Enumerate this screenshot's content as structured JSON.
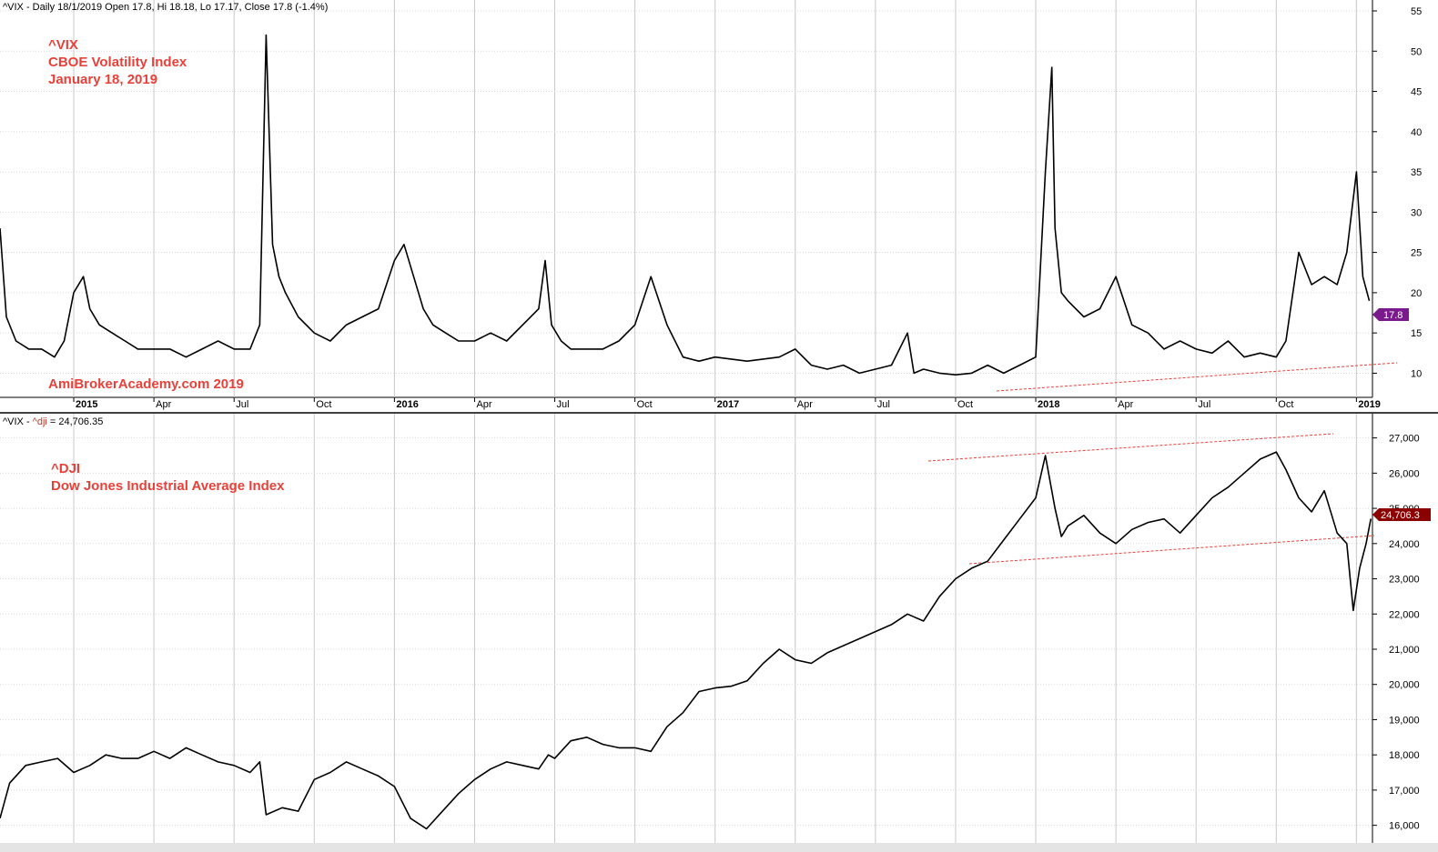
{
  "header": {
    "vix_info": "^VIX - Daily 18/1/2019 Open 17.8, Hi 18.18, Lo 17.17, Close 17.8 (-1.4%)",
    "dji_info_prefix": "^VIX - ",
    "dji_info_name": "^dji",
    "dji_info_suffix": " = 24,706.35"
  },
  "annotations": {
    "vix_lines": [
      "^VIX",
      "CBOE Volatility Index",
      "January 18, 2019"
    ],
    "watermark": "AmiBrokerAcademy.com  2019",
    "dji_lines": [
      "^DJI",
      "Dow Jones Industrial Average Index"
    ]
  },
  "colors": {
    "price_line": "#000000",
    "trendline": "#e8413a",
    "annotation": "#e8413a",
    "vix_tag": "#7a1a8c",
    "dji_tag": "#8b0000",
    "grid": "#c8c8c8"
  },
  "chart_data": [
    {
      "type": "line",
      "name": "^VIX",
      "ylim": [
        7,
        55
      ],
      "y_ticks": [
        10,
        15,
        20,
        25,
        30,
        35,
        40,
        45,
        50,
        55
      ],
      "y_tick_labels": [
        "10",
        "15",
        "20",
        "25",
        "30",
        "35",
        "40",
        "45",
        "50",
        "55"
      ],
      "x_ticks": [
        {
          "label": "2015",
          "date": 2015.0,
          "major": true
        },
        {
          "label": "Apr",
          "date": 2015.25,
          "major": false
        },
        {
          "label": "Jul",
          "date": 2015.5,
          "major": false
        },
        {
          "label": "Oct",
          "date": 2015.75,
          "major": false
        },
        {
          "label": "2016",
          "date": 2016.0,
          "major": true
        },
        {
          "label": "Apr",
          "date": 2016.25,
          "major": false
        },
        {
          "label": "Jul",
          "date": 2016.5,
          "major": false
        },
        {
          "label": "Oct",
          "date": 2016.75,
          "major": false
        },
        {
          "label": "2017",
          "date": 2017.0,
          "major": true
        },
        {
          "label": "Apr",
          "date": 2017.25,
          "major": false
        },
        {
          "label": "Jul",
          "date": 2017.5,
          "major": false
        },
        {
          "label": "Oct",
          "date": 2017.75,
          "major": false
        },
        {
          "label": "2018",
          "date": 2018.0,
          "major": true
        },
        {
          "label": "Apr",
          "date": 2018.25,
          "major": false
        },
        {
          "label": "Jul",
          "date": 2018.5,
          "major": false
        },
        {
          "label": "Oct",
          "date": 2018.75,
          "major": false
        },
        {
          "label": "2019",
          "date": 2019.0,
          "major": true
        }
      ],
      "x_range": [
        2014.77,
        2019.05
      ],
      "last_value_label": "17.8",
      "x": [
        2014.77,
        2014.79,
        2014.82,
        2014.86,
        2014.9,
        2014.94,
        2014.97,
        2015.0,
        2015.03,
        2015.05,
        2015.08,
        2015.12,
        2015.16,
        2015.2,
        2015.25,
        2015.3,
        2015.35,
        2015.4,
        2015.45,
        2015.5,
        2015.55,
        2015.58,
        2015.6,
        2015.62,
        2015.64,
        2015.66,
        2015.7,
        2015.75,
        2015.8,
        2015.85,
        2015.9,
        2015.95,
        2016.0,
        2016.03,
        2016.06,
        2016.09,
        2016.12,
        2016.16,
        2016.2,
        2016.25,
        2016.3,
        2016.35,
        2016.4,
        2016.45,
        2016.47,
        2016.49,
        2016.52,
        2016.55,
        2016.6,
        2016.65,
        2016.7,
        2016.75,
        2016.8,
        2016.85,
        2016.9,
        2016.95,
        2017.0,
        2017.1,
        2017.2,
        2017.25,
        2017.3,
        2017.35,
        2017.4,
        2017.45,
        2017.5,
        2017.55,
        2017.6,
        2017.62,
        2017.65,
        2017.7,
        2017.75,
        2017.8,
        2017.85,
        2017.9,
        2017.95,
        2018.0,
        2018.03,
        2018.05,
        2018.06,
        2018.08,
        2018.1,
        2018.15,
        2018.2,
        2018.25,
        2018.3,
        2018.35,
        2018.4,
        2018.45,
        2018.5,
        2018.55,
        2018.6,
        2018.65,
        2018.7,
        2018.75,
        2018.78,
        2018.82,
        2018.86,
        2018.9,
        2018.94,
        2018.97,
        2019.0,
        2019.02,
        2019.04
      ],
      "values": [
        28,
        17,
        14,
        13,
        13,
        12,
        14,
        20,
        22,
        18,
        16,
        15,
        14,
        13,
        13,
        13,
        12,
        13,
        14,
        13,
        13,
        16,
        52,
        26,
        22,
        20,
        17,
        15,
        14,
        16,
        17,
        18,
        24,
        26,
        22,
        18,
        16,
        15,
        14,
        14,
        15,
        14,
        16,
        18,
        24,
        16,
        14,
        13,
        13,
        13,
        14,
        16,
        22,
        16,
        12,
        11.5,
        12,
        11.5,
        12,
        13,
        11,
        10.5,
        11,
        10,
        10.5,
        11,
        15,
        10,
        10.5,
        10,
        9.8,
        10,
        11,
        10,
        11,
        12,
        35,
        48,
        28,
        20,
        19,
        17,
        18,
        22,
        16,
        15,
        13,
        14,
        13,
        12.5,
        14,
        12,
        12.5,
        12,
        14,
        25,
        21,
        22,
        21,
        25,
        35,
        22,
        19
      ]
    },
    {
      "type": "line",
      "name": "^DJI",
      "ylim": [
        15500,
        27300
      ],
      "y_ticks": [
        16000,
        17000,
        18000,
        19000,
        20000,
        21000,
        22000,
        23000,
        24000,
        25000,
        26000,
        27000
      ],
      "y_tick_labels": [
        "16,000",
        "17,000",
        "18,000",
        "19,000",
        "20,000",
        "21,000",
        "22,000",
        "23,000",
        "24,000",
        "25,000",
        "26,000",
        "27,000"
      ],
      "x_range": [
        2014.77,
        2019.05
      ],
      "last_value_label": "24,706.3",
      "x": [
        2014.77,
        2014.8,
        2014.85,
        2014.9,
        2014.95,
        2015.0,
        2015.05,
        2015.1,
        2015.15,
        2015.2,
        2015.25,
        2015.3,
        2015.35,
        2015.4,
        2015.45,
        2015.5,
        2015.55,
        2015.58,
        2015.6,
        2015.65,
        2015.7,
        2015.75,
        2015.8,
        2015.85,
        2015.9,
        2015.95,
        2016.0,
        2016.05,
        2016.1,
        2016.15,
        2016.2,
        2016.25,
        2016.3,
        2016.35,
        2016.4,
        2016.45,
        2016.48,
        2016.5,
        2016.55,
        2016.6,
        2016.65,
        2016.7,
        2016.75,
        2016.8,
        2016.85,
        2016.9,
        2016.95,
        2017.0,
        2017.05,
        2017.1,
        2017.15,
        2017.2,
        2017.25,
        2017.3,
        2017.35,
        2017.4,
        2017.45,
        2017.5,
        2017.55,
        2017.6,
        2017.65,
        2017.7,
        2017.75,
        2017.8,
        2017.85,
        2017.9,
        2017.95,
        2018.0,
        2018.03,
        2018.06,
        2018.08,
        2018.1,
        2018.15,
        2018.2,
        2018.25,
        2018.3,
        2018.35,
        2018.4,
        2018.45,
        2018.5,
        2018.55,
        2018.6,
        2018.65,
        2018.7,
        2018.75,
        2018.78,
        2018.82,
        2018.86,
        2018.9,
        2018.94,
        2018.97,
        2018.99,
        2019.01,
        2019.03,
        2019.045
      ],
      "values": [
        16200,
        17200,
        17700,
        17800,
        17900,
        17500,
        17700,
        18000,
        17900,
        17900,
        18100,
        17900,
        18200,
        18000,
        17800,
        17700,
        17500,
        17800,
        16300,
        16500,
        16400,
        17300,
        17500,
        17800,
        17600,
        17400,
        17100,
        16200,
        15900,
        16400,
        16900,
        17300,
        17600,
        17800,
        17700,
        17600,
        18000,
        17900,
        18400,
        18500,
        18300,
        18200,
        18200,
        18100,
        18800,
        19200,
        19800,
        19900,
        19950,
        20100,
        20600,
        21000,
        20700,
        20600,
        20900,
        21100,
        21300,
        21500,
        21700,
        22000,
        21800,
        22500,
        23000,
        23300,
        23500,
        24100,
        24700,
        25300,
        26500,
        25000,
        24200,
        24500,
        24800,
        24300,
        24000,
        24400,
        24600,
        24700,
        24300,
        24800,
        25300,
        25600,
        26000,
        26400,
        26600,
        26100,
        25300,
        24900,
        25500,
        24300,
        24000,
        22100,
        23300,
        24000,
        24706
      ]
    }
  ]
}
